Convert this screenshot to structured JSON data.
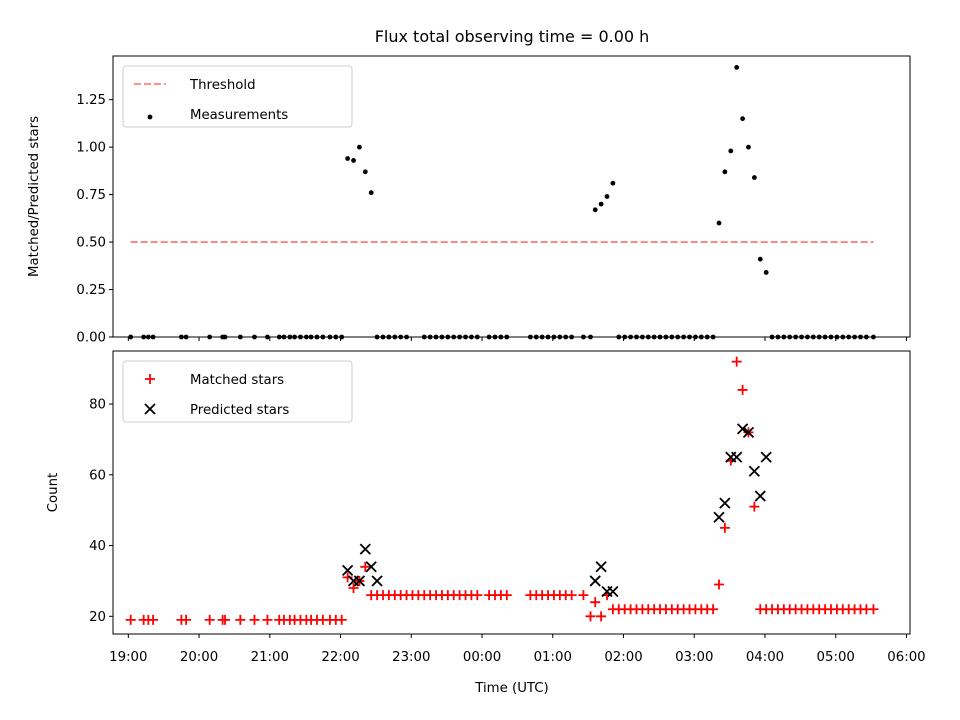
{
  "figure": {
    "title": "Flux total observing time = 0.00 h",
    "xlabel": "Time (UTC)"
  },
  "colors": {
    "threshold": "#ff7f7f",
    "measurements": "#000000",
    "matched": "#ff0000",
    "predicted": "#000000"
  },
  "chart_data": [
    {
      "type": "scatter",
      "title": "Flux total observing time = 0.00 h",
      "ylabel": "Matched/Predicted stars",
      "ylim": [
        0,
        1.48
      ],
      "yticks": [
        0.0,
        0.25,
        0.5,
        0.75,
        1.0,
        1.25
      ],
      "ytick_labels": [
        "0.00",
        "0.25",
        "0.50",
        "0.75",
        "1.00",
        "1.25"
      ],
      "xlim": [
        "18:47",
        "06:03"
      ],
      "legend_placement": "upper-left",
      "series": [
        {
          "name": "Threshold",
          "kind": "dashed-line",
          "x": [
            "19:02",
            "05:32"
          ],
          "y": [
            0.5,
            0.5
          ]
        },
        {
          "name": "Measurements",
          "kind": "points",
          "x": [
            "19:02",
            "19:13",
            "19:17",
            "19:21",
            "19:45",
            "19:49",
            "20:09",
            "20:20",
            "20:22",
            "20:35",
            "20:47",
            "20:58",
            "21:08",
            "21:12",
            "21:17",
            "21:21",
            "21:26",
            "21:31",
            "21:35",
            "21:40",
            "21:45",
            "21:51",
            "21:56",
            "22:01",
            "22:06",
            "22:11",
            "22:16",
            "22:21",
            "22:26",
            "22:31",
            "22:36",
            "22:41",
            "22:46",
            "22:51",
            "22:56",
            "23:11",
            "23:16",
            "23:21",
            "23:26",
            "23:31",
            "23:36",
            "23:41",
            "23:46",
            "23:51",
            "23:56",
            "00:06",
            "00:11",
            "00:16",
            "00:21",
            "00:41",
            "00:46",
            "00:51",
            "00:56",
            "01:01",
            "01:06",
            "01:11",
            "01:16",
            "01:26",
            "01:32",
            "01:36",
            "01:41",
            "01:46",
            "01:51",
            "01:56",
            "02:01",
            "02:06",
            "02:11",
            "02:16",
            "02:21",
            "02:26",
            "02:31",
            "02:36",
            "02:41",
            "02:46",
            "02:51",
            "02:56",
            "03:01",
            "03:06",
            "03:11",
            "03:16",
            "03:21",
            "03:26",
            "03:31",
            "03:36",
            "03:41",
            "03:46",
            "03:51",
            "03:56",
            "04:01",
            "04:06",
            "04:11",
            "04:16",
            "04:21",
            "04:26",
            "04:31",
            "04:36",
            "04:41",
            "04:46",
            "04:51",
            "04:56",
            "05:01",
            "05:06",
            "05:11",
            "05:16",
            "05:21",
            "05:26",
            "05:32"
          ],
          "y": [
            0,
            0,
            0,
            0,
            0,
            0,
            0,
            0,
            0,
            0,
            0,
            0,
            0,
            0,
            0,
            0,
            0,
            0,
            0,
            0,
            0,
            0,
            0,
            0,
            0.94,
            0.93,
            1.0,
            0.87,
            0.76,
            0,
            0,
            0,
            0,
            0,
            0,
            0,
            0,
            0,
            0,
            0,
            0,
            0,
            0,
            0,
            0,
            0,
            0,
            0,
            0,
            0,
            0,
            0,
            0,
            0,
            0,
            0,
            0,
            0,
            0,
            0.67,
            0.7,
            0.74,
            0.81,
            0,
            0,
            0,
            0,
            0,
            0,
            0,
            0,
            0,
            0,
            0,
            0,
            0,
            0,
            0,
            0,
            0,
            0.6,
            0.87,
            0.98,
            1.42,
            1.15,
            1.0,
            0.84,
            0.41,
            0.34,
            0,
            0,
            0,
            0,
            0,
            0,
            0,
            0,
            0,
            0,
            0,
            0,
            0,
            0,
            0,
            0,
            0,
            0
          ]
        }
      ]
    },
    {
      "type": "scatter",
      "xlabel": "Time (UTC)",
      "ylabel": "Count",
      "ylim": [
        15,
        95
      ],
      "yticks": [
        20,
        40,
        60,
        80
      ],
      "ytick_labels": [
        "20",
        "40",
        "60",
        "80"
      ],
      "xlim": [
        "18:47",
        "06:03"
      ],
      "xtick_labels": [
        "19:00",
        "20:00",
        "21:00",
        "22:00",
        "23:00",
        "00:00",
        "01:00",
        "02:00",
        "03:00",
        "04:00",
        "05:00",
        "06:00"
      ],
      "legend_placement": "upper-left",
      "series": [
        {
          "name": "Matched stars",
          "marker": "plus",
          "x": [
            "19:02",
            "19:13",
            "19:17",
            "19:21",
            "19:45",
            "19:49",
            "20:09",
            "20:20",
            "20:22",
            "20:35",
            "20:47",
            "20:58",
            "21:08",
            "21:12",
            "21:17",
            "21:21",
            "21:26",
            "21:31",
            "21:35",
            "21:40",
            "21:45",
            "21:51",
            "21:56",
            "22:01",
            "22:06",
            "22:11",
            "22:16",
            "22:21",
            "22:26",
            "22:31",
            "22:36",
            "22:41",
            "22:46",
            "22:51",
            "22:56",
            "23:01",
            "23:06",
            "23:11",
            "23:16",
            "23:21",
            "23:26",
            "23:31",
            "23:36",
            "23:41",
            "23:46",
            "23:51",
            "23:56",
            "00:06",
            "00:11",
            "00:16",
            "00:21",
            "00:41",
            "00:46",
            "00:51",
            "00:56",
            "01:01",
            "01:06",
            "01:11",
            "01:16",
            "01:26",
            "01:32",
            "01:36",
            "01:41",
            "01:46",
            "01:51",
            "01:56",
            "02:01",
            "02:06",
            "02:11",
            "02:16",
            "02:21",
            "02:26",
            "02:31",
            "02:36",
            "02:41",
            "02:46",
            "02:51",
            "02:56",
            "03:01",
            "03:06",
            "03:11",
            "03:16",
            "03:21",
            "03:26",
            "03:31",
            "03:36",
            "03:41",
            "03:46",
            "03:51",
            "03:56",
            "04:01",
            "04:06",
            "04:11",
            "04:16",
            "04:21",
            "04:26",
            "04:31",
            "04:36",
            "04:41",
            "04:46",
            "04:51",
            "04:56",
            "05:01",
            "05:06",
            "05:11",
            "05:16",
            "05:21",
            "05:26",
            "05:32"
          ],
          "y": [
            19,
            19,
            19,
            19,
            19,
            19,
            19,
            19,
            19,
            19,
            19,
            19,
            19,
            19,
            19,
            19,
            19,
            19,
            19,
            19,
            19,
            19,
            19,
            19,
            31,
            28,
            30,
            34,
            26,
            26,
            26,
            26,
            26,
            26,
            26,
            26,
            26,
            26,
            26,
            26,
            26,
            26,
            26,
            26,
            26,
            26,
            26,
            26,
            26,
            26,
            26,
            26,
            26,
            26,
            26,
            26,
            26,
            26,
            26,
            26,
            20,
            24,
            20,
            26,
            22,
            22,
            22,
            22,
            22,
            22,
            22,
            22,
            22,
            22,
            22,
            22,
            22,
            22,
            22,
            22,
            22,
            22,
            29,
            45,
            64,
            92,
            84,
            72,
            51,
            22,
            22,
            22,
            22,
            22,
            22,
            22,
            22,
            22,
            22,
            22,
            22,
            22,
            22,
            22,
            22,
            22,
            22,
            22,
            22
          ]
        },
        {
          "name": "Predicted stars",
          "marker": "x",
          "x": [
            "22:06",
            "22:11",
            "22:16",
            "22:21",
            "22:26",
            "22:31",
            "01:36",
            "01:41",
            "01:46",
            "01:51",
            "03:21",
            "03:26",
            "03:31",
            "03:36",
            "03:41",
            "03:46",
            "03:51",
            "03:56",
            "04:01"
          ],
          "y": [
            33,
            30,
            30,
            39,
            34,
            30,
            30,
            34,
            27,
            27,
            48,
            52,
            65,
            65,
            73,
            72,
            61,
            54,
            65
          ]
        }
      ]
    }
  ]
}
